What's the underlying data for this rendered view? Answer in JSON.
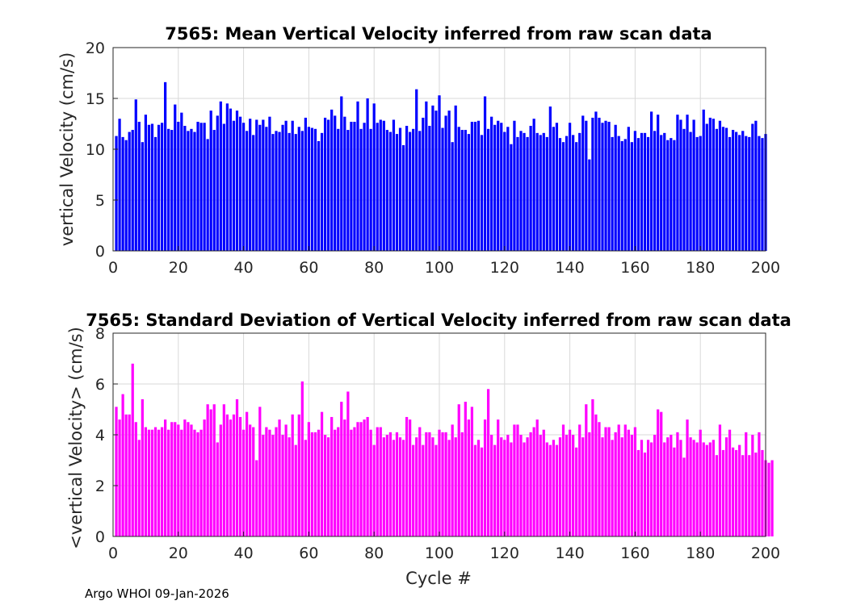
{
  "footer_text": "Argo WHOI 09-Jan-2026",
  "chart_data": [
    {
      "type": "bar",
      "title": "7565: Mean Vertical Velocity inferred from raw scan data",
      "xlabel": "",
      "ylabel": "vertical Velocity (cm/s)",
      "xlim": [
        0,
        200
      ],
      "ylim": [
        0,
        20
      ],
      "xticks": [
        "0",
        "20",
        "40",
        "60",
        "80",
        "100",
        "120",
        "140",
        "160",
        "180",
        "200"
      ],
      "yticks": [
        "0",
        "5",
        "10",
        "15",
        "20"
      ],
      "grid": true,
      "color": "#0000ff",
      "x_start": 1,
      "values": [
        11.3,
        13.0,
        11.2,
        10.9,
        11.7,
        11.9,
        14.9,
        12.7,
        10.7,
        13.4,
        12.4,
        12.5,
        11.2,
        12.4,
        12.6,
        16.6,
        12.0,
        11.9,
        14.4,
        12.7,
        13.6,
        12.3,
        11.8,
        12.0,
        11.7,
        12.7,
        12.6,
        12.6,
        11.0,
        13.8,
        11.9,
        13.3,
        14.7,
        12.5,
        14.5,
        14.0,
        12.8,
        13.8,
        13.2,
        12.6,
        11.8,
        13.0,
        11.4,
        12.9,
        12.4,
        12.9,
        12.2,
        13.2,
        11.5,
        11.8,
        11.7,
        12.4,
        12.8,
        11.6,
        12.8,
        11.5,
        12.2,
        11.8,
        13.1,
        12.2,
        12.1,
        12.0,
        10.8,
        11.6,
        13.1,
        12.9,
        13.9,
        13.3,
        12.0,
        15.2,
        13.2,
        11.9,
        12.7,
        12.7,
        14.7,
        12.0,
        12.6,
        15.0,
        12.0,
        14.5,
        12.6,
        12.9,
        12.8,
        11.9,
        11.7,
        12.9,
        11.5,
        12.1,
        10.4,
        12.3,
        11.7,
        12.0,
        15.9,
        11.8,
        13.1,
        14.7,
        12.3,
        14.3,
        13.8,
        15.3,
        12.1,
        13.3,
        13.8,
        10.7,
        14.3,
        12.2,
        11.9,
        11.9,
        11.5,
        12.7,
        12.7,
        12.8,
        11.4,
        15.2,
        12.0,
        13.2,
        12.4,
        12.8,
        12.6,
        11.7,
        12.2,
        10.5,
        12.8,
        11.2,
        11.8,
        11.6,
        11.2,
        12.3,
        13.0,
        11.6,
        11.4,
        11.6,
        11.2,
        14.2,
        12.2,
        12.6,
        11.1,
        10.7,
        11.3,
        12.6,
        11.4,
        10.7,
        11.6,
        13.3,
        12.8,
        9.0,
        13.1,
        13.7,
        13.1,
        12.6,
        12.8,
        12.7,
        11.2,
        12.4,
        11.3,
        10.8,
        11.0,
        12.2,
        10.7,
        11.8,
        11.1,
        11.6,
        11.6,
        11.2,
        13.7,
        11.8,
        13.4,
        11.4,
        11.6,
        10.9,
        11.1,
        10.9,
        13.4,
        12.9,
        12.0,
        13.4,
        11.7,
        12.9,
        11.2,
        11.3,
        13.9,
        12.5,
        13.1,
        13.0,
        12.0,
        12.8,
        12.2,
        12.1,
        11.2,
        11.9,
        11.7,
        11.4,
        11.8,
        11.3,
        11.2,
        12.5,
        12.8,
        11.3,
        11.1,
        11.5
      ]
    },
    {
      "type": "bar",
      "title": "7565: Standard Deviation of Vertical Velocity inferred from raw scan data",
      "xlabel": "Cycle #",
      "ylabel": "<vertical Velocity> (cm/s)",
      "xlim": [
        0,
        200
      ],
      "ylim": [
        0,
        8
      ],
      "xticks": [
        "0",
        "20",
        "40",
        "60",
        "80",
        "100",
        "120",
        "140",
        "160",
        "180",
        "200"
      ],
      "yticks": [
        "0",
        "2",
        "4",
        "6",
        "8"
      ],
      "grid": true,
      "color": "#ff00ff",
      "x_start": 1,
      "values": [
        5.1,
        4.6,
        5.6,
        4.8,
        4.8,
        6.8,
        4.5,
        3.8,
        5.4,
        4.3,
        4.2,
        4.2,
        4.3,
        4.2,
        4.3,
        4.6,
        4.2,
        4.5,
        4.5,
        4.4,
        4.2,
        4.6,
        4.5,
        4.4,
        4.2,
        4.1,
        4.2,
        4.6,
        5.2,
        5.0,
        5.2,
        3.7,
        4.4,
        5.2,
        4.8,
        4.6,
        4.8,
        5.4,
        4.7,
        4.2,
        4.9,
        4.4,
        4.3,
        3.0,
        5.1,
        4.0,
        4.3,
        4.2,
        4.0,
        4.3,
        4.6,
        4.0,
        4.4,
        3.9,
        4.8,
        3.6,
        4.8,
        6.1,
        3.8,
        4.5,
        4.1,
        4.1,
        4.2,
        4.9,
        4.0,
        3.9,
        4.7,
        4.2,
        4.3,
        5.3,
        4.6,
        5.7,
        4.2,
        4.3,
        4.5,
        4.5,
        4.6,
        4.7,
        4.2,
        3.6,
        4.3,
        4.3,
        3.9,
        4.0,
        4.1,
        3.8,
        4.1,
        3.9,
        3.8,
        4.7,
        4.6,
        3.6,
        3.9,
        4.3,
        3.6,
        4.1,
        4.1,
        3.9,
        3.6,
        4.2,
        4.1,
        4.1,
        3.8,
        4.4,
        3.9,
        5.2,
        4.1,
        5.3,
        4.6,
        5.1,
        3.6,
        3.8,
        3.5,
        4.6,
        5.8,
        4.0,
        3.6,
        4.6,
        3.9,
        3.8,
        4.0,
        3.7,
        4.4,
        4.4,
        4.0,
        3.7,
        3.9,
        4.1,
        4.3,
        4.6,
        4.0,
        4.2,
        3.7,
        3.6,
        3.8,
        3.6,
        3.9,
        4.4,
        4.0,
        4.2,
        4.0,
        3.5,
        4.4,
        3.9,
        5.2,
        4.1,
        5.4,
        4.8,
        4.5,
        3.9,
        4.3,
        4.3,
        3.8,
        4.1,
        4.4,
        3.9,
        4.4,
        4.2,
        4.0,
        4.3,
        3.4,
        3.8,
        3.3,
        3.8,
        3.7,
        4.0,
        5.0,
        4.9,
        3.7,
        3.9,
        4.0,
        3.5,
        4.1,
        3.8,
        3.1,
        4.6,
        3.9,
        3.8,
        3.7,
        4.2,
        3.7,
        3.6,
        3.7,
        3.8,
        3.2,
        4.4,
        3.4,
        3.9,
        4.2,
        3.5,
        3.4,
        3.6,
        3.2,
        4.1,
        3.2,
        4.0,
        3.3,
        4.1,
        3.4,
        3.0,
        2.9,
        3.0
      ]
    }
  ]
}
